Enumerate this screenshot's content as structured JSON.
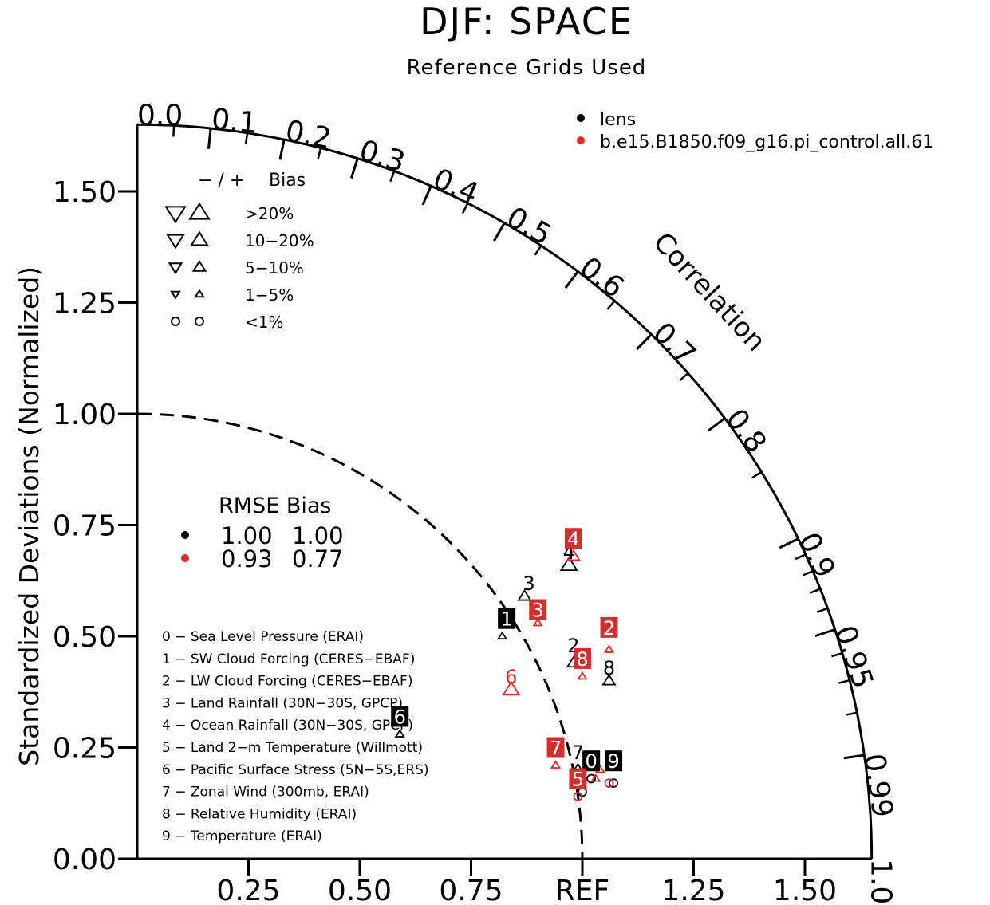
{
  "title": "DJF: SPACE",
  "subtitle": "Reference Grids Used",
  "colors": {
    "case1": "#000000",
    "case2": "#d03030",
    "axis": "#000000"
  },
  "chart_data": {
    "type": "scatter",
    "subtype": "taylor-diagram",
    "ylabel": "Standardized Deviations (Normalized)",
    "arc_label": "Correlation",
    "ref_label": "REF",
    "y_ticks": [
      "0.00",
      "0.25",
      "0.50",
      "0.75",
      "1.00",
      "1.25",
      "1.50"
    ],
    "x_ticks": [
      "0.25",
      "0.50",
      "0.75",
      "REF",
      "1.25",
      "1.50"
    ],
    "correlation_ticks": [
      "0.0",
      "0.1",
      "0.2",
      "0.3",
      "0.4",
      "0.5",
      "0.6",
      "0.7",
      "0.8",
      "0.9",
      "0.95",
      "0.99",
      "1.0"
    ],
    "legend": [
      {
        "name": "lens",
        "color": "#000000"
      },
      {
        "name": "b.e15.B1850.f09_g16.pi_control.all.61",
        "color": "#d03030"
      }
    ],
    "bias_legend": {
      "header_sign": "− / +",
      "header_label": "Bias",
      "rows": [
        {
          "label": ">20%",
          "symbol": "triangle",
          "size": 12
        },
        {
          "label": "10−20%",
          "symbol": "triangle",
          "size": 10
        },
        {
          "label": "5−10%",
          "symbol": "triangle",
          "size": 7.5
        },
        {
          "label": "1−5%",
          "symbol": "triangle",
          "size": 5
        },
        {
          "label": "<1%",
          "symbol": "circle",
          "size": 5
        }
      ]
    },
    "rmse_table": {
      "header": "RMSE Bias",
      "rows": [
        {
          "color": "#000000",
          "rmse": "1.00",
          "bias": "1.00"
        },
        {
          "color": "#d03030",
          "rmse": "0.93",
          "bias": "0.77"
        }
      ]
    },
    "variables": [
      "0 − Sea Level Pressure (ERAI)",
      "1 − SW Cloud Forcing (CERES−EBAF)",
      "2 − LW Cloud Forcing (CERES−EBAF)",
      "3 − Land Rainfall (30N−30S, GPCP)",
      "4 − Ocean Rainfall (30N−30S, GPCP)",
      "5 − Land 2−m Temperature (Willmott)",
      "6 − Pacific Surface Stress (5N−5S,ERS)",
      "7 − Zonal Wind (300mb, ERAI)",
      "8 − Relative Humidity (ERAI)",
      "9 − Temperature (ERAI)"
    ],
    "points": [
      {
        "series": 0,
        "id": "0",
        "x": 1.02,
        "y": 0.18,
        "bias": "circle",
        "up": true,
        "size": 5
      },
      {
        "series": 0,
        "id": "1",
        "x": 0.82,
        "y": 0.5,
        "bias": "triangle",
        "up": true,
        "size": 5
      },
      {
        "series": 0,
        "id": "2",
        "x": 0.98,
        "y": 0.44,
        "bias": "triangle",
        "up": true,
        "size": 7.5
      },
      {
        "series": 0,
        "id": "3",
        "x": 0.87,
        "y": 0.59,
        "bias": "triangle",
        "up": true,
        "size": 7.5
      },
      {
        "series": 0,
        "id": "4",
        "x": 0.97,
        "y": 0.66,
        "bias": "triangle",
        "up": true,
        "size": 10
      },
      {
        "series": 0,
        "id": "5",
        "x": 1.0,
        "y": 0.15,
        "bias": "circle",
        "up": true,
        "size": 5
      },
      {
        "series": 0,
        "id": "6",
        "x": 0.59,
        "y": 0.28,
        "bias": "triangle",
        "up": true,
        "size": 5
      },
      {
        "series": 0,
        "id": "7",
        "x": 0.99,
        "y": 0.2,
        "bias": "triangle",
        "up": true,
        "size": 7.5
      },
      {
        "series": 0,
        "id": "8",
        "x": 1.06,
        "y": 0.4,
        "bias": "triangle",
        "up": true,
        "size": 7.5
      },
      {
        "series": 0,
        "id": "9",
        "x": 1.07,
        "y": 0.17,
        "bias": "circle",
        "up": true,
        "size": 5
      },
      {
        "series": 1,
        "id": "0",
        "x": 1.04,
        "y": 0.2,
        "bias": "triangle",
        "up": true,
        "size": 5
      },
      {
        "series": 1,
        "id": "1",
        "x": 1.03,
        "y": 0.18,
        "bias": "triangle",
        "up": true,
        "size": 5
      },
      {
        "series": 1,
        "id": "2",
        "x": 1.06,
        "y": 0.47,
        "bias": "triangle",
        "up": true,
        "size": 5
      },
      {
        "series": 1,
        "id": "3",
        "x": 0.9,
        "y": 0.53,
        "bias": "triangle",
        "up": true,
        "size": 5
      },
      {
        "series": 1,
        "id": "4",
        "x": 0.98,
        "y": 0.68,
        "bias": "triangle",
        "up": true,
        "size": 7.5
      },
      {
        "series": 1,
        "id": "5",
        "x": 0.99,
        "y": 0.14,
        "bias": "circle",
        "up": true,
        "size": 5
      },
      {
        "series": 1,
        "id": "6",
        "x": 0.84,
        "y": 0.38,
        "bias": "triangle",
        "up": true,
        "size": 10
      },
      {
        "series": 1,
        "id": "7",
        "x": 0.94,
        "y": 0.21,
        "bias": "triangle",
        "up": true,
        "size": 5
      },
      {
        "series": 1,
        "id": "8",
        "x": 1.0,
        "y": 0.41,
        "bias": "triangle",
        "up": true,
        "size": 5
      },
      {
        "series": 1,
        "id": "9",
        "x": 1.06,
        "y": 0.17,
        "bias": "circle",
        "up": true,
        "size": 5
      }
    ],
    "labels": [
      {
        "series": 0,
        "id": "0",
        "x": 1.02,
        "y": 0.22,
        "boxed": true
      },
      {
        "series": 0,
        "id": "1",
        "x": 0.83,
        "y": 0.54,
        "boxed": true
      },
      {
        "series": 0,
        "id": "2",
        "x": 0.98,
        "y": 0.48,
        "boxed": false
      },
      {
        "series": 0,
        "id": "3",
        "x": 0.88,
        "y": 0.62,
        "boxed": false
      },
      {
        "series": 0,
        "id": "4",
        "x": 0.97,
        "y": 0.69,
        "boxed": false
      },
      {
        "series": 0,
        "id": "5",
        "x": 1.0,
        "y": 0.18,
        "boxed": false
      },
      {
        "series": 0,
        "id": "6",
        "x": 0.59,
        "y": 0.32,
        "boxed": true
      },
      {
        "series": 0,
        "id": "7",
        "x": 0.99,
        "y": 0.24,
        "boxed": false
      },
      {
        "series": 0,
        "id": "8",
        "x": 1.06,
        "y": 0.43,
        "boxed": false
      },
      {
        "series": 0,
        "id": "9",
        "x": 1.07,
        "y": 0.22,
        "boxed": true
      },
      {
        "series": 1,
        "id": "2",
        "x": 1.06,
        "y": 0.52,
        "boxed": true
      },
      {
        "series": 1,
        "id": "3",
        "x": 0.9,
        "y": 0.56,
        "boxed": true
      },
      {
        "series": 1,
        "id": "4",
        "x": 0.98,
        "y": 0.72,
        "boxed": true
      },
      {
        "series": 1,
        "id": "5",
        "x": 0.99,
        "y": 0.18,
        "boxed": true
      },
      {
        "series": 1,
        "id": "6",
        "x": 0.84,
        "y": 0.41,
        "boxed": false
      },
      {
        "series": 1,
        "id": "7",
        "x": 0.94,
        "y": 0.25,
        "boxed": true
      },
      {
        "series": 1,
        "id": "8",
        "x": 1.0,
        "y": 0.45,
        "boxed": true
      }
    ]
  }
}
